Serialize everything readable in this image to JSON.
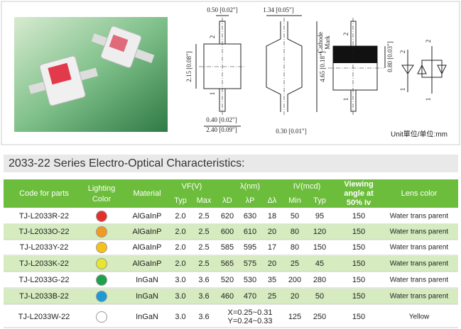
{
  "drawing": {
    "dims": {
      "pin_width": "0.50 [0.02\"]",
      "side_width": "1.34 [0.05\"]",
      "body_height": "2.15 [0.08\"]",
      "total_length": "4.65 [0.18\"]",
      "pin_width_bottom": "0.40 [0.02\"]",
      "body_width": "2.40 [0.09\"]",
      "pin_thickness": "0.30 [0.01\"]",
      "mark_height": "0.80 [0.03\"]"
    },
    "cathode": [
      "Cathode",
      "Mark"
    ],
    "pins": [
      "2",
      "1",
      "2",
      "1",
      "2",
      "1",
      "2",
      "1"
    ],
    "unit": "Unit單位/单位:mm"
  },
  "heading": "2033-22 Series Electro-Optical Characteristics:",
  "table": {
    "header": {
      "code": "Code for parts",
      "color": [
        "Lighting",
        "Color"
      ],
      "material": "Material",
      "vf": "VF(V)",
      "lambda": "λ(nm)",
      "iv": "IV(mcd)",
      "angle": [
        "Viewing",
        "angle at",
        "50% Iv"
      ],
      "lens": "Lens color"
    },
    "subheader": {
      "vf_typ": "Typ",
      "vf_max": "Max",
      "ld": "λD",
      "lp": "λP",
      "dl": "Δλ",
      "iv_min": "Min",
      "iv_typ": "Typ"
    },
    "rows": [
      {
        "code": "TJ-L2033R-22",
        "color": "#e3302a",
        "material": "AlGaInP",
        "vf_typ": "2.0",
        "vf_max": "2.5",
        "ld": 620,
        "lp": 630,
        "dl": 18,
        "iv_min": 50,
        "iv_typ": 95,
        "angle": 150,
        "lens": "Water trans parent"
      },
      {
        "code": "TJ-L2033O-22",
        "color": "#f29a1f",
        "material": "AlGaInP",
        "vf_typ": "2.0",
        "vf_max": "2.5",
        "ld": 600,
        "lp": 610,
        "dl": 20,
        "iv_min": 80,
        "iv_typ": 120,
        "angle": 150,
        "lens": "Water trans parent"
      },
      {
        "code": "TJ-L2033Y-22",
        "color": "#f5c21a",
        "material": "AlGaInP",
        "vf_typ": "2.0",
        "vf_max": "2.5",
        "ld": 585,
        "lp": 595,
        "dl": 17,
        "iv_min": 80,
        "iv_typ": 150,
        "angle": 150,
        "lens": "Water trans parent"
      },
      {
        "code": "TJ-L2033K-22",
        "color": "#e6e62c",
        "material": "AlGaInP",
        "vf_typ": "2.0",
        "vf_max": "2.5",
        "ld": 565,
        "lp": 575,
        "dl": 20,
        "iv_min": 25,
        "iv_typ": 45,
        "angle": 150,
        "lens": "Water trans parent"
      },
      {
        "code": "TJ-L2033G-22",
        "color": "#1fa04a",
        "material": "InGaN",
        "vf_typ": "3.0",
        "vf_max": "3.6",
        "ld": 520,
        "lp": 530,
        "dl": 35,
        "iv_min": 200,
        "iv_typ": 280,
        "angle": 150,
        "lens": "Water trans parent"
      },
      {
        "code": "TJ-L2033B-22",
        "color": "#1d9ad6",
        "material": "InGaN",
        "vf_typ": "3.0",
        "vf_max": "3.6",
        "ld": 460,
        "lp": 470,
        "dl": 25,
        "iv_min": 20,
        "iv_typ": 50,
        "angle": 150,
        "lens": "Water trans parent"
      },
      {
        "code": "TJ-L2033W-22",
        "color": "#ffffff",
        "material": "InGaN",
        "vf_typ": "3.0",
        "vf_max": "3.6",
        "chroma": [
          "X=0.25~0.31",
          "Y=0.24~0.33"
        ],
        "iv_min": 125,
        "iv_typ": 250,
        "angle": 150,
        "lens": "Yellow"
      }
    ]
  }
}
